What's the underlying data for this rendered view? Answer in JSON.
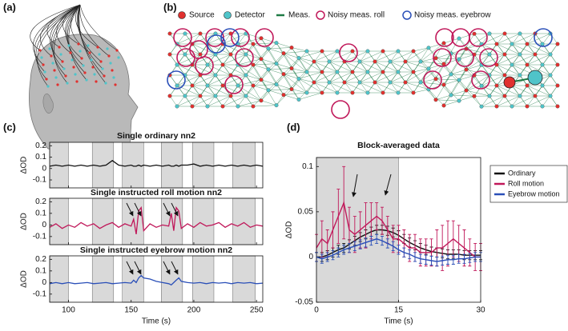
{
  "panels": {
    "a": "(a)",
    "b": "(b)",
    "c": "(c)",
    "d": "(d)"
  },
  "network_legend": [
    "Source",
    "Detector",
    "Meas.",
    "Noisy meas. roll",
    "Noisy meas. eyebrow"
  ],
  "chart_data": [
    {
      "type": "line",
      "title": "Single ordinary nn2",
      "ylabel": "ΔOD",
      "color": "#111111",
      "xlim": [
        85,
        255
      ],
      "xticks": [
        100,
        150,
        200,
        250
      ],
      "show_xtick_labels": false,
      "ylim": [
        -0.17,
        0.23
      ],
      "yticks": [
        -0.1,
        0,
        0.1,
        0.2
      ],
      "shaded": [
        [
          85,
          100
        ],
        [
          119,
          136
        ],
        [
          143,
          160
        ],
        [
          174,
          191
        ],
        [
          199,
          216
        ],
        [
          231,
          249
        ]
      ],
      "x": [
        85,
        90,
        95,
        100,
        105,
        110,
        115,
        120,
        125,
        130,
        135,
        140,
        145,
        150,
        152,
        154,
        156,
        158,
        160,
        165,
        170,
        175,
        180,
        182,
        184,
        186,
        188,
        190,
        195,
        200,
        205,
        210,
        215,
        220,
        225,
        230,
        235,
        240,
        245,
        250,
        255
      ],
      "values": [
        0.02,
        0.03,
        0.02,
        0.03,
        0.02,
        0.03,
        0.02,
        0.03,
        0.02,
        0.03,
        0.07,
        0.03,
        0.02,
        0.03,
        0.02,
        0.02,
        0.03,
        0.02,
        0.03,
        0.02,
        0.03,
        0.02,
        0.03,
        0.02,
        0.02,
        0.03,
        0.02,
        0.03,
        0.03,
        0.04,
        0.02,
        0.03,
        0.02,
        0.03,
        0.02,
        0.03,
        0.02,
        0.03,
        0.02,
        0.03,
        0.02
      ]
    },
    {
      "type": "line",
      "title": "Single instructed roll motion nn2",
      "ylabel": "ΔOD",
      "color": "#c0185a",
      "xlim": [
        85,
        255
      ],
      "xticks": [
        100,
        150,
        200,
        250
      ],
      "show_xtick_labels": false,
      "ylim": [
        -0.17,
        0.23
      ],
      "yticks": [
        -0.1,
        0,
        0.1,
        0.2
      ],
      "shaded": [
        [
          85,
          100
        ],
        [
          119,
          136
        ],
        [
          143,
          160
        ],
        [
          174,
          191
        ],
        [
          199,
          216
        ],
        [
          231,
          249
        ]
      ],
      "x": [
        85,
        90,
        95,
        100,
        105,
        110,
        115,
        120,
        125,
        130,
        135,
        140,
        145,
        150,
        152,
        154,
        156,
        158,
        160,
        165,
        170,
        175,
        180,
        182,
        184,
        186,
        188,
        190,
        195,
        200,
        205,
        210,
        215,
        220,
        225,
        230,
        235,
        240,
        245,
        250,
        255
      ],
      "values": [
        -0.02,
        0.01,
        -0.03,
        0.0,
        -0.02,
        0.02,
        -0.01,
        0.01,
        -0.03,
        0.0,
        0.02,
        -0.02,
        0.01,
        -0.01,
        0.05,
        -0.08,
        0.12,
        0.15,
        -0.05,
        0.01,
        -0.02,
        0.0,
        -0.01,
        0.1,
        -0.05,
        0.15,
        0.12,
        -0.03,
        0.01,
        -0.02,
        0.02,
        -0.01,
        0.0,
        0.02,
        -0.02,
        0.01,
        -0.01,
        0.02,
        -0.02,
        0.0,
        -0.01
      ]
    },
    {
      "type": "line",
      "title": "Single instructed eyebrow motion nn2",
      "ylabel": "ΔOD",
      "xlabel": "Time (s)",
      "color": "#2a4fb8",
      "xlim": [
        85,
        255
      ],
      "xticks": [
        100,
        150,
        200,
        250
      ],
      "show_xtick_labels": true,
      "ylim": [
        -0.17,
        0.23
      ],
      "yticks": [
        -0.1,
        0,
        0.1,
        0.2
      ],
      "shaded": [
        [
          85,
          100
        ],
        [
          119,
          136
        ],
        [
          143,
          160
        ],
        [
          174,
          191
        ],
        [
          199,
          216
        ],
        [
          231,
          249
        ]
      ],
      "x": [
        85,
        90,
        95,
        100,
        105,
        110,
        115,
        120,
        125,
        130,
        135,
        140,
        145,
        150,
        152,
        154,
        156,
        158,
        160,
        165,
        170,
        175,
        180,
        182,
        184,
        186,
        188,
        190,
        195,
        200,
        205,
        210,
        215,
        220,
        225,
        230,
        235,
        240,
        245,
        250,
        255
      ],
      "values": [
        -0.01,
        0.0,
        -0.01,
        0.0,
        -0.01,
        -0.005,
        0.0,
        -0.01,
        -0.005,
        0.0,
        -0.01,
        -0.005,
        0.0,
        -0.005,
        0.02,
        0.0,
        0.04,
        0.06,
        0.04,
        0.03,
        0.01,
        0.0,
        -0.01,
        -0.02,
        0.0,
        0.02,
        0.04,
        0.01,
        0.0,
        -0.005,
        0.0,
        -0.01,
        0.0,
        -0.005,
        0.0,
        -0.01,
        0.0,
        -0.005,
        0.0,
        -0.01,
        -0.005
      ]
    },
    {
      "type": "errorbar",
      "title": "Block-averaged data",
      "xlabel": "Time (s)",
      "ylabel": "ΔOD",
      "xlim": [
        0,
        30
      ],
      "xticks": [
        0,
        15,
        30
      ],
      "ylim": [
        -0.05,
        0.11
      ],
      "yticks": [
        -0.05,
        0,
        0.05,
        0.1
      ],
      "shaded": [
        [
          0,
          15
        ]
      ],
      "legend": "outside right",
      "x": [
        0,
        1,
        2,
        3,
        4,
        5,
        6,
        7,
        8,
        9,
        10,
        11,
        12,
        13,
        14,
        15,
        16,
        17,
        18,
        19,
        20,
        21,
        22,
        23,
        24,
        25,
        26,
        27,
        28,
        29,
        30
      ],
      "series": [
        {
          "name": "Ordinary",
          "color": "#111111",
          "values": [
            0,
            0,
            0.002,
            0.005,
            0.008,
            0.01,
            0.014,
            0.018,
            0.022,
            0.025,
            0.028,
            0.03,
            0.03,
            0.029,
            0.027,
            0.024,
            0.02,
            0.016,
            0.013,
            0.01,
            0.008,
            0.006,
            0.005,
            0.004,
            0.003,
            0.003,
            0.003,
            0.002,
            0.002,
            0.002,
            0.002
          ],
          "errors": [
            0.005,
            0.005,
            0.005,
            0.005,
            0.005,
            0.005,
            0.005,
            0.005,
            0.005,
            0.005,
            0.005,
            0.005,
            0.005,
            0.005,
            0.005,
            0.005,
            0.005,
            0.005,
            0.005,
            0.005,
            0.005,
            0.005,
            0.005,
            0.005,
            0.005,
            0.005,
            0.005,
            0.005,
            0.005,
            0.005,
            0.005
          ]
        },
        {
          "name": "Roll motion",
          "color": "#c0185a",
          "values": [
            0.01,
            0.02,
            0.015,
            0.03,
            0.045,
            0.06,
            0.03,
            0.025,
            0.03,
            0.035,
            0.04,
            0.045,
            0.04,
            0.03,
            0.02,
            0.02,
            0.015,
            0.01,
            0.01,
            0.005,
            0.005,
            0.005,
            0.01,
            0.01,
            0.015,
            0.02,
            0.015,
            0.01,
            0.005,
            0.0,
            0.0
          ],
          "errors": [
            0.015,
            0.02,
            0.015,
            0.02,
            0.03,
            0.04,
            0.025,
            0.02,
            0.02,
            0.025,
            0.02,
            0.015,
            0.015,
            0.015,
            0.015,
            0.015,
            0.015,
            0.015,
            0.015,
            0.015,
            0.015,
            0.015,
            0.02,
            0.025,
            0.025,
            0.02,
            0.02,
            0.02,
            0.015,
            0.015,
            0.015
          ]
        },
        {
          "name": "Eyebrow motion",
          "color": "#2a4fb8",
          "values": [
            0,
            -0.002,
            0,
            0.002,
            0.005,
            0.008,
            0.01,
            0.012,
            0.014,
            0.016,
            0.018,
            0.02,
            0.018,
            0.015,
            0.012,
            0.008,
            0.005,
            0.003,
            0,
            -0.002,
            -0.003,
            -0.004,
            -0.005,
            -0.004,
            -0.003,
            -0.003,
            -0.002,
            -0.002,
            -0.001,
            0,
            0
          ],
          "errors": [
            0.005,
            0.005,
            0.005,
            0.005,
            0.005,
            0.005,
            0.005,
            0.005,
            0.005,
            0.005,
            0.005,
            0.005,
            0.005,
            0.005,
            0.005,
            0.005,
            0.005,
            0.005,
            0.005,
            0.005,
            0.005,
            0.005,
            0.005,
            0.005,
            0.005,
            0.005,
            0.005,
            0.005,
            0.005,
            0.005,
            0.005
          ]
        }
      ]
    }
  ]
}
